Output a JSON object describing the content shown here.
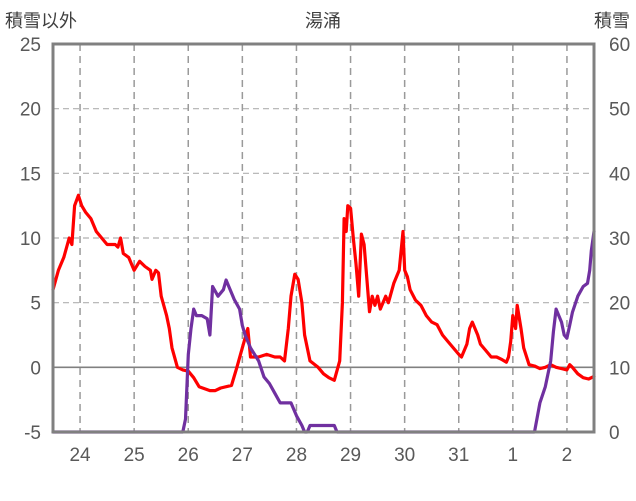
{
  "chart_data": {
    "type": "line",
    "title": "湯涌",
    "left_axis_title": "積雪以外",
    "right_axis_title": "積雪",
    "ylim_left": [
      -5,
      25
    ],
    "ylim_right": [
      0,
      60
    ],
    "yticks_left": [
      -5,
      0,
      5,
      10,
      15,
      20,
      25
    ],
    "yticks_right": [
      0,
      10,
      20,
      30,
      40,
      50,
      60
    ],
    "x_range_days": [
      23.5,
      33.5
    ],
    "day_ticks": [
      {
        "x": 24,
        "label": "24"
      },
      {
        "x": 25,
        "label": "25"
      },
      {
        "x": 26,
        "label": "26"
      },
      {
        "x": 27,
        "label": "27"
      },
      {
        "x": 28,
        "label": "28"
      },
      {
        "x": 29,
        "label": "29"
      },
      {
        "x": 30,
        "label": "30"
      },
      {
        "x": 31,
        "label": "31"
      },
      {
        "x": 32,
        "label": "1"
      },
      {
        "x": 33,
        "label": "2"
      }
    ],
    "grid": true,
    "legend": "none",
    "series": [
      {
        "axis": "left",
        "color": "#ff0000",
        "points": [
          [
            23.5,
            6.0
          ],
          [
            23.6,
            7.5
          ],
          [
            23.7,
            8.5
          ],
          [
            23.8,
            10.0
          ],
          [
            23.85,
            9.5
          ],
          [
            23.9,
            12.5
          ],
          [
            23.97,
            13.3
          ],
          [
            24.03,
            12.5
          ],
          [
            24.1,
            12.0
          ],
          [
            24.2,
            11.5
          ],
          [
            24.3,
            10.5
          ],
          [
            24.4,
            10.0
          ],
          [
            24.5,
            9.5
          ],
          [
            24.65,
            9.5
          ],
          [
            24.7,
            9.3
          ],
          [
            24.75,
            10.0
          ],
          [
            24.8,
            8.8
          ],
          [
            24.9,
            8.5
          ],
          [
            25.0,
            7.5
          ],
          [
            25.1,
            8.2
          ],
          [
            25.2,
            7.8
          ],
          [
            25.3,
            7.5
          ],
          [
            25.33,
            6.8
          ],
          [
            25.4,
            7.5
          ],
          [
            25.45,
            7.3
          ],
          [
            25.5,
            5.5
          ],
          [
            25.6,
            4.0
          ],
          [
            25.65,
            3.0
          ],
          [
            25.7,
            1.5
          ],
          [
            25.8,
            0.0
          ],
          [
            25.9,
            -0.2
          ],
          [
            26.0,
            -0.3
          ],
          [
            26.1,
            -0.8
          ],
          [
            26.2,
            -1.5
          ],
          [
            26.4,
            -1.8
          ],
          [
            26.5,
            -1.8
          ],
          [
            26.6,
            -1.6
          ],
          [
            26.8,
            -1.4
          ],
          [
            26.9,
            0.0
          ],
          [
            27.0,
            1.5
          ],
          [
            27.1,
            3.0
          ],
          [
            27.15,
            0.8
          ],
          [
            27.3,
            0.8
          ],
          [
            27.45,
            1.0
          ],
          [
            27.6,
            0.8
          ],
          [
            27.7,
            0.8
          ],
          [
            27.78,
            0.5
          ],
          [
            27.85,
            3.0
          ],
          [
            27.9,
            5.5
          ],
          [
            27.97,
            7.2
          ],
          [
            28.03,
            6.8
          ],
          [
            28.1,
            5.0
          ],
          [
            28.15,
            2.5
          ],
          [
            28.25,
            0.5
          ],
          [
            28.4,
            0.0
          ],
          [
            28.5,
            -0.5
          ],
          [
            28.6,
            -0.8
          ],
          [
            28.7,
            -1.0
          ],
          [
            28.8,
            0.5
          ],
          [
            28.85,
            5.0
          ],
          [
            28.88,
            11.5
          ],
          [
            28.92,
            10.5
          ],
          [
            28.95,
            12.5
          ],
          [
            29.0,
            12.3
          ],
          [
            29.05,
            10.0
          ],
          [
            29.1,
            8.0
          ],
          [
            29.15,
            5.5
          ],
          [
            29.2,
            10.3
          ],
          [
            29.25,
            9.5
          ],
          [
            29.35,
            4.3
          ],
          [
            29.4,
            5.5
          ],
          [
            29.45,
            4.8
          ],
          [
            29.5,
            5.5
          ],
          [
            29.55,
            4.5
          ],
          [
            29.65,
            5.5
          ],
          [
            29.7,
            5.0
          ],
          [
            29.8,
            6.5
          ],
          [
            29.9,
            7.5
          ],
          [
            29.97,
            10.5
          ],
          [
            30.0,
            7.5
          ],
          [
            30.05,
            7.0
          ],
          [
            30.1,
            6.0
          ],
          [
            30.2,
            5.2
          ],
          [
            30.3,
            4.8
          ],
          [
            30.4,
            4.0
          ],
          [
            30.5,
            3.5
          ],
          [
            30.6,
            3.3
          ],
          [
            30.7,
            2.5
          ],
          [
            30.8,
            2.0
          ],
          [
            30.9,
            1.5
          ],
          [
            31.0,
            1.0
          ],
          [
            31.05,
            0.8
          ],
          [
            31.15,
            1.8
          ],
          [
            31.2,
            3.0
          ],
          [
            31.25,
            3.5
          ],
          [
            31.35,
            2.5
          ],
          [
            31.4,
            1.8
          ],
          [
            31.5,
            1.3
          ],
          [
            31.6,
            0.8
          ],
          [
            31.7,
            0.8
          ],
          [
            31.8,
            0.6
          ],
          [
            31.88,
            0.4
          ],
          [
            31.92,
            0.8
          ],
          [
            31.96,
            2.0
          ],
          [
            32.0,
            4.0
          ],
          [
            32.05,
            3.0
          ],
          [
            32.08,
            4.8
          ],
          [
            32.15,
            3.0
          ],
          [
            32.2,
            1.5
          ],
          [
            32.3,
            0.2
          ],
          [
            32.4,
            0.1
          ],
          [
            32.5,
            -0.1
          ],
          [
            32.6,
            0.0
          ],
          [
            32.7,
            0.2
          ],
          [
            32.8,
            0.0
          ],
          [
            32.9,
            -0.1
          ],
          [
            33.0,
            -0.2
          ],
          [
            33.05,
            0.2
          ],
          [
            33.1,
            0.0
          ],
          [
            33.2,
            -0.5
          ],
          [
            33.3,
            -0.8
          ],
          [
            33.4,
            -0.9
          ],
          [
            33.5,
            -0.7
          ]
        ]
      },
      {
        "axis": "right",
        "color": "#7030a0",
        "points": [
          [
            23.5,
            0.0
          ],
          [
            25.9,
            0.0
          ],
          [
            25.95,
            2.0
          ],
          [
            26.0,
            12.0
          ],
          [
            26.05,
            16.0
          ],
          [
            26.1,
            19.0
          ],
          [
            26.15,
            18.0
          ],
          [
            26.25,
            18.0
          ],
          [
            26.35,
            17.5
          ],
          [
            26.4,
            15.0
          ],
          [
            26.45,
            22.5
          ],
          [
            26.55,
            21.0
          ],
          [
            26.65,
            22.0
          ],
          [
            26.7,
            23.5
          ],
          [
            26.75,
            22.5
          ],
          [
            26.85,
            20.5
          ],
          [
            26.95,
            19.0
          ],
          [
            27.0,
            16.5
          ],
          [
            27.05,
            15.0
          ],
          [
            27.15,
            13.0
          ],
          [
            27.3,
            11.0
          ],
          [
            27.4,
            8.5
          ],
          [
            27.5,
            7.5
          ],
          [
            27.6,
            6.0
          ],
          [
            27.7,
            4.5
          ],
          [
            27.9,
            4.5
          ],
          [
            28.0,
            2.5
          ],
          [
            28.1,
            1.0
          ],
          [
            28.15,
            0.0
          ],
          [
            28.2,
            0.0
          ],
          [
            28.25,
            1.0
          ],
          [
            28.7,
            1.0
          ],
          [
            28.75,
            0.0
          ],
          [
            32.4,
            0.0
          ],
          [
            32.5,
            4.5
          ],
          [
            32.6,
            7.0
          ],
          [
            32.7,
            11.0
          ],
          [
            32.75,
            15.5
          ],
          [
            32.8,
            19.0
          ],
          [
            32.85,
            18.0
          ],
          [
            32.9,
            17.0
          ],
          [
            32.95,
            15.0
          ],
          [
            33.0,
            14.5
          ],
          [
            33.05,
            16.5
          ],
          [
            33.1,
            18.5
          ],
          [
            33.2,
            21.0
          ],
          [
            33.3,
            22.5
          ],
          [
            33.38,
            23.0
          ],
          [
            33.42,
            25.0
          ],
          [
            33.45,
            28.0
          ],
          [
            33.5,
            31.0
          ]
        ]
      }
    ]
  }
}
